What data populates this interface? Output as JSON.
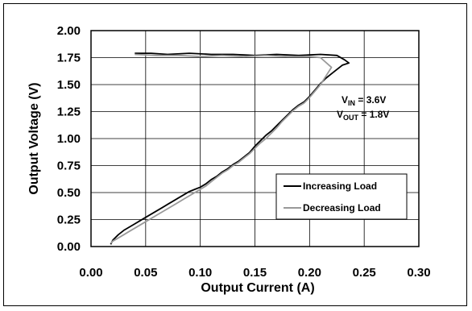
{
  "chart_data": {
    "type": "line",
    "xlabel": "Output Current (A)",
    "ylabel": "Output Voltage (V)",
    "xlim": [
      0.0,
      0.3
    ],
    "ylim": [
      0.0,
      2.0
    ],
    "x_ticks": [
      "0.00",
      "0.05",
      "0.10",
      "0.15",
      "0.20",
      "0.25",
      "0.30"
    ],
    "y_ticks": [
      "0.00",
      "0.25",
      "0.50",
      "0.75",
      "1.00",
      "1.25",
      "1.50",
      "1.75",
      "2.00"
    ],
    "grid": true,
    "legend_position": "lower-right",
    "annotations": {
      "vin_prefix": "V",
      "vin_sub": "IN",
      "vin_value": " = 3.6V",
      "vout_prefix": "V",
      "vout_sub": "OUT",
      "vout_value": " = 1.8V"
    },
    "series": [
      {
        "name": "Increasing Load",
        "color": "#000000",
        "points": [
          [
            0.018,
            0.02
          ],
          [
            0.02,
            0.06
          ],
          [
            0.025,
            0.11
          ],
          [
            0.03,
            0.15
          ],
          [
            0.035,
            0.18
          ],
          [
            0.04,
            0.21
          ],
          [
            0.045,
            0.24
          ],
          [
            0.05,
            0.27
          ],
          [
            0.055,
            0.3
          ],
          [
            0.06,
            0.33
          ],
          [
            0.065,
            0.36
          ],
          [
            0.07,
            0.39
          ],
          [
            0.075,
            0.42
          ],
          [
            0.08,
            0.45
          ],
          [
            0.085,
            0.48
          ],
          [
            0.09,
            0.51
          ],
          [
            0.095,
            0.53
          ],
          [
            0.1,
            0.55
          ],
          [
            0.105,
            0.58
          ],
          [
            0.11,
            0.62
          ],
          [
            0.115,
            0.65
          ],
          [
            0.12,
            0.69
          ],
          [
            0.125,
            0.72
          ],
          [
            0.13,
            0.76
          ],
          [
            0.135,
            0.79
          ],
          [
            0.14,
            0.83
          ],
          [
            0.145,
            0.87
          ],
          [
            0.15,
            0.93
          ],
          [
            0.155,
            0.98
          ],
          [
            0.16,
            1.03
          ],
          [
            0.165,
            1.07
          ],
          [
            0.17,
            1.12
          ],
          [
            0.175,
            1.17
          ],
          [
            0.18,
            1.22
          ],
          [
            0.185,
            1.27
          ],
          [
            0.19,
            1.31
          ],
          [
            0.195,
            1.34
          ],
          [
            0.2,
            1.39
          ],
          [
            0.205,
            1.45
          ],
          [
            0.21,
            1.51
          ],
          [
            0.215,
            1.56
          ],
          [
            0.22,
            1.6
          ],
          [
            0.225,
            1.64
          ],
          [
            0.23,
            1.68
          ],
          [
            0.236,
            1.7
          ],
          [
            0.232,
            1.73
          ],
          [
            0.225,
            1.77
          ],
          [
            0.21,
            1.78
          ],
          [
            0.19,
            1.77
          ],
          [
            0.17,
            1.78
          ],
          [
            0.15,
            1.77
          ],
          [
            0.13,
            1.78
          ],
          [
            0.11,
            1.78
          ],
          [
            0.09,
            1.79
          ],
          [
            0.07,
            1.78
          ],
          [
            0.055,
            1.79
          ],
          [
            0.04,
            1.79
          ]
        ]
      },
      {
        "name": "Decreasing Load",
        "color": "#999999",
        "points": [
          [
            0.04,
            1.78
          ],
          [
            0.06,
            1.77
          ],
          [
            0.08,
            1.77
          ],
          [
            0.1,
            1.76
          ],
          [
            0.12,
            1.77
          ],
          [
            0.14,
            1.76
          ],
          [
            0.16,
            1.77
          ],
          [
            0.18,
            1.76
          ],
          [
            0.2,
            1.76
          ],
          [
            0.21,
            1.75
          ],
          [
            0.22,
            1.66
          ],
          [
            0.215,
            1.58
          ],
          [
            0.21,
            1.5
          ],
          [
            0.205,
            1.44
          ],
          [
            0.2,
            1.38
          ],
          [
            0.195,
            1.33
          ],
          [
            0.19,
            1.3
          ],
          [
            0.185,
            1.26
          ],
          [
            0.18,
            1.21
          ],
          [
            0.175,
            1.16
          ],
          [
            0.17,
            1.1
          ],
          [
            0.165,
            1.05
          ],
          [
            0.16,
            1.0
          ],
          [
            0.155,
            0.96
          ],
          [
            0.15,
            0.91
          ],
          [
            0.145,
            0.86
          ],
          [
            0.14,
            0.82
          ],
          [
            0.135,
            0.78
          ],
          [
            0.13,
            0.75
          ],
          [
            0.125,
            0.71
          ],
          [
            0.12,
            0.68
          ],
          [
            0.115,
            0.64
          ],
          [
            0.11,
            0.6
          ],
          [
            0.105,
            0.56
          ],
          [
            0.1,
            0.53
          ],
          [
            0.095,
            0.5
          ],
          [
            0.09,
            0.47
          ],
          [
            0.085,
            0.44
          ],
          [
            0.08,
            0.41
          ],
          [
            0.075,
            0.38
          ],
          [
            0.07,
            0.35
          ],
          [
            0.065,
            0.32
          ],
          [
            0.06,
            0.29
          ],
          [
            0.055,
            0.26
          ],
          [
            0.05,
            0.23
          ],
          [
            0.045,
            0.2
          ],
          [
            0.04,
            0.17
          ],
          [
            0.035,
            0.14
          ],
          [
            0.03,
            0.11
          ],
          [
            0.025,
            0.08
          ],
          [
            0.02,
            0.05
          ],
          [
            0.018,
            0.03
          ]
        ]
      }
    ]
  }
}
